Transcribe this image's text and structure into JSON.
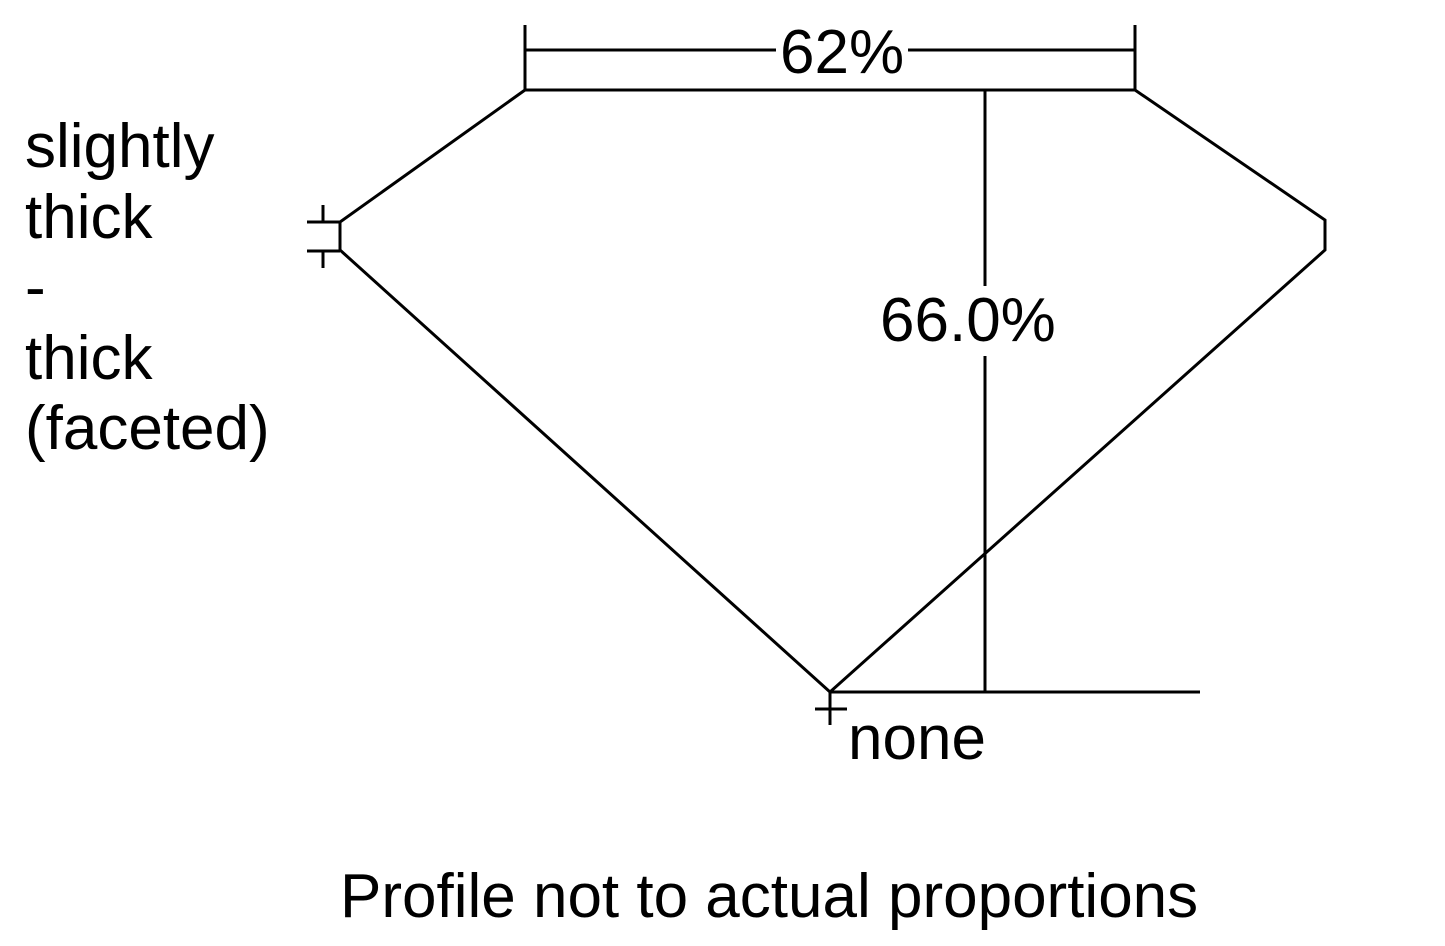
{
  "diagram": {
    "table_percent": "62%",
    "depth_percent": "66.0%",
    "girdle_label": [
      "slightly",
      "thick",
      "-",
      "thick",
      "(faceted)"
    ],
    "culet_label": "none",
    "footnote": "Profile not to actual proportions",
    "line_color": "#000000"
  }
}
